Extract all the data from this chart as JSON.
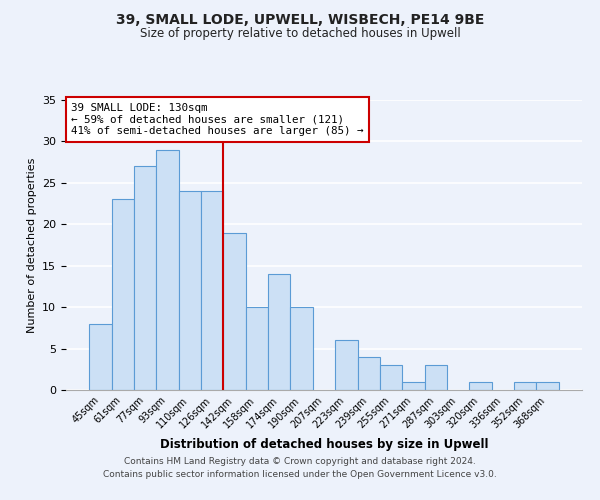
{
  "title": "39, SMALL LODE, UPWELL, WISBECH, PE14 9BE",
  "subtitle": "Size of property relative to detached houses in Upwell",
  "xlabel": "Distribution of detached houses by size in Upwell",
  "ylabel": "Number of detached properties",
  "footer_lines": [
    "Contains HM Land Registry data © Crown copyright and database right 2024.",
    "Contains public sector information licensed under the Open Government Licence v3.0."
  ],
  "bar_labels": [
    "45sqm",
    "61sqm",
    "77sqm",
    "93sqm",
    "110sqm",
    "126sqm",
    "142sqm",
    "158sqm",
    "174sqm",
    "190sqm",
    "207sqm",
    "223sqm",
    "239sqm",
    "255sqm",
    "271sqm",
    "287sqm",
    "303sqm",
    "320sqm",
    "336sqm",
    "352sqm",
    "368sqm"
  ],
  "bar_values": [
    8,
    23,
    27,
    29,
    24,
    24,
    19,
    10,
    14,
    10,
    0,
    6,
    4,
    3,
    1,
    3,
    0,
    1,
    0,
    1,
    1
  ],
  "bar_color": "#cce0f5",
  "bar_edge_color": "#5b9bd5",
  "ylim": [
    0,
    35
  ],
  "yticks": [
    0,
    5,
    10,
    15,
    20,
    25,
    30,
    35
  ],
  "annotation_box_text": "39 SMALL LODE: 130sqm\n← 59% of detached houses are smaller (121)\n41% of semi-detached houses are larger (85) →",
  "vline_x_index": 5.5,
  "vline_color": "#cc0000",
  "annotation_box_facecolor": "#ffffff",
  "annotation_box_edgecolor": "#cc0000",
  "background_color": "#edf2fb"
}
